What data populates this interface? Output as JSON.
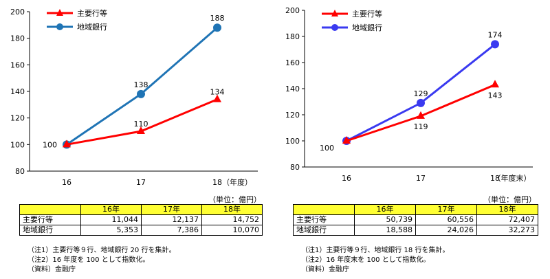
{
  "colors": {
    "main": "#ff0000",
    "left_regional": "#1f74b5",
    "right_regional": "#3a3af0",
    "header_bg": "#ffff33"
  },
  "chart_data": [
    {
      "type": "line",
      "categories": [
        "16",
        "17",
        "18"
      ],
      "xlabel_suffix": "（年度）",
      "ylim": [
        80,
        200
      ],
      "yticks": [
        "80",
        "100",
        "120",
        "140",
        "160",
        "180",
        "200"
      ],
      "legend_position": "top-left",
      "series": [
        {
          "name": "主要行等",
          "marker": "triangle",
          "values": [
            100,
            110,
            134
          ],
          "labels": [
            "100",
            "110",
            "134"
          ]
        },
        {
          "name": "地域銀行",
          "marker": "circle",
          "values": [
            100,
            138,
            188
          ],
          "labels": [
            "",
            "138",
            "188"
          ]
        }
      ]
    },
    {
      "type": "line",
      "categories": [
        "16",
        "17",
        "18"
      ],
      "xlabel_suffix": "（年度末）",
      "ylim": [
        80,
        200
      ],
      "yticks": [
        "80",
        "100",
        "120",
        "140",
        "160",
        "180",
        "200"
      ],
      "legend_position": "top-left",
      "series": [
        {
          "name": "主要行等",
          "marker": "triangle",
          "values": [
            100,
            119,
            143
          ],
          "labels": [
            "100",
            "119",
            "143"
          ]
        },
        {
          "name": "地域銀行",
          "marker": "circle",
          "values": [
            100,
            129,
            174
          ],
          "labels": [
            "",
            "129",
            "174"
          ]
        }
      ]
    }
  ],
  "tables": [
    {
      "unit": "（単位：億円）",
      "headers": [
        "",
        "16年",
        "17年",
        "18年"
      ],
      "rows": [
        {
          "label": "主要行等",
          "values": [
            "11,044",
            "12,137",
            "14,752"
          ]
        },
        {
          "label": "地域銀行",
          "values": [
            "5,353",
            "7,386",
            "10,070"
          ]
        }
      ],
      "notes": [
        "（注1）主要行等９行、地域銀行 20 行を集計。",
        "（注2）16 年度を 100 として指数化。",
        "（資料）金融庁"
      ]
    },
    {
      "unit": "（単位：億円）",
      "headers": [
        "",
        "16年",
        "17年",
        "18年"
      ],
      "rows": [
        {
          "label": "主要行等",
          "values": [
            "50,739",
            "60,556",
            "72,407"
          ]
        },
        {
          "label": "地域銀行",
          "values": [
            "18,588",
            "24,026",
            "32,273"
          ]
        }
      ],
      "notes": [
        "（注1）主要行等９行、地域銀行 18 行を集計。",
        "（注2）16 年度末を 100 として指数化。",
        "（資料）金融庁"
      ]
    }
  ]
}
